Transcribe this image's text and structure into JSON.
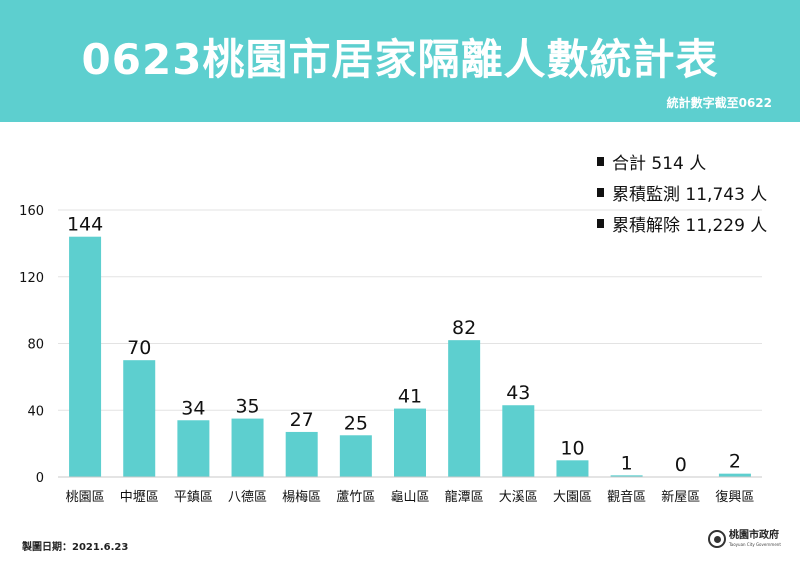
{
  "header": {
    "title": "0623桃園市居家隔離人數統計表",
    "subtitle": "統計數字截至0622"
  },
  "summary": [
    "合計 514 人",
    "累積監測 11,743 人",
    "累積解除 11,229 人"
  ],
  "footer": {
    "date": "製圖日期：2021.6.23",
    "logo_name": "桃園市政府",
    "logo_en": "Taoyuan City Government"
  },
  "colors": {
    "banner": "#5dcfcf",
    "bar": "#5dcfcf",
    "grid": "#e3e3e3"
  },
  "chart_data": {
    "type": "bar",
    "title": "",
    "xlabel": "",
    "ylabel": "",
    "categories": [
      "桃園區",
      "中壢區",
      "平鎮區",
      "八德區",
      "楊梅區",
      "蘆竹區",
      "龜山區",
      "龍潭區",
      "大溪區",
      "大園區",
      "觀音區",
      "新屋區",
      "復興區"
    ],
    "values": [
      144,
      70,
      34,
      35,
      27,
      25,
      41,
      82,
      43,
      10,
      1,
      0,
      2
    ],
    "ylim": [
      0,
      160
    ],
    "yticks": [
      0,
      40,
      80,
      120,
      160
    ],
    "grid": true,
    "data_labels": true,
    "legend": "none"
  }
}
